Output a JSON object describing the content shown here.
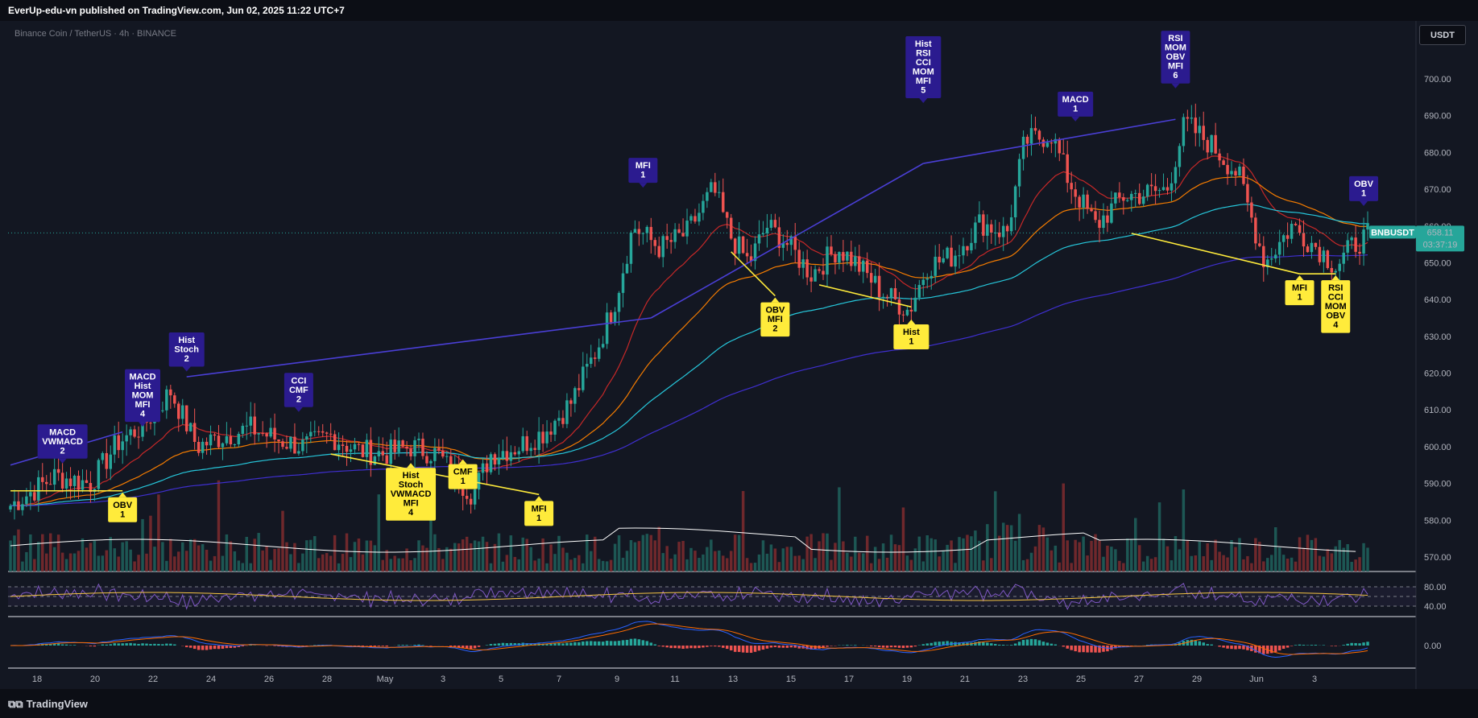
{
  "header": {
    "published": "EverUp-edu-vn published on TradingView.com, Jun 02, 2025 11:22 UTC+7"
  },
  "symbol": {
    "title": "Binance Coin / TetherUS · 4h · BINANCE"
  },
  "currency": "USDT",
  "footer": {
    "brand": "TradingView"
  },
  "colors": {
    "up": "#26a69a",
    "down": "#ef5350",
    "bearish_label": "#2b1b8f",
    "bullish_label": "#ffeb3b",
    "ema_fast": "#c62828",
    "ema_mid": "#f57c00",
    "ema_slow": "#26c6da",
    "ema_long": "#3f2fd0",
    "divergence_bull": "#ffeb3b",
    "divergence_bear": "#4a3fd6"
  },
  "chart_data": {
    "type": "candlestick",
    "timeframe": "4h",
    "ylim": [
      565,
      705
    ],
    "yticks": [
      570,
      580,
      590,
      600,
      610,
      620,
      630,
      640,
      650,
      660,
      670,
      680,
      690,
      700
    ],
    "xticks": [
      "18",
      "20",
      "22",
      "24",
      "26",
      "28",
      "May",
      "3",
      "5",
      "7",
      "9",
      "11",
      "13",
      "15",
      "17",
      "19",
      "21",
      "23",
      "25",
      "27",
      "29",
      "Jun",
      "3"
    ],
    "last_price": {
      "label": "BNBUSDT",
      "value": "658.11",
      "countdown": "03:37:19"
    },
    "price_path": [
      [
        0,
        584
      ],
      [
        10,
        592
      ],
      [
        18,
        590
      ],
      [
        24,
        601
      ],
      [
        30,
        606
      ],
      [
        36,
        615
      ],
      [
        42,
        600
      ],
      [
        48,
        603
      ],
      [
        54,
        605
      ],
      [
        60,
        602
      ],
      [
        66,
        600
      ],
      [
        72,
        603
      ],
      [
        78,
        599
      ],
      [
        84,
        598
      ],
      [
        90,
        600
      ],
      [
        96,
        598
      ],
      [
        100,
        592
      ],
      [
        104,
        587
      ],
      [
        108,
        598
      ],
      [
        114,
        600
      ],
      [
        120,
        604
      ],
      [
        126,
        612
      ],
      [
        132,
        627
      ],
      [
        136,
        640
      ],
      [
        140,
        660
      ],
      [
        146,
        654
      ],
      [
        152,
        658
      ],
      [
        158,
        670
      ],
      [
        162,
        657
      ],
      [
        166,
        650
      ],
      [
        170,
        660
      ],
      [
        174,
        656
      ],
      [
        180,
        647
      ],
      [
        186,
        654
      ],
      [
        190,
        650
      ],
      [
        196,
        642
      ],
      [
        202,
        637
      ],
      [
        206,
        649
      ],
      [
        212,
        652
      ],
      [
        218,
        661
      ],
      [
        224,
        658
      ],
      [
        228,
        683
      ],
      [
        234,
        685
      ],
      [
        238,
        672
      ],
      [
        244,
        660
      ],
      [
        250,
        668
      ],
      [
        256,
        669
      ],
      [
        260,
        670
      ],
      [
        264,
        688
      ],
      [
        270,
        682
      ],
      [
        276,
        674
      ],
      [
        282,
        650
      ],
      [
        288,
        660
      ],
      [
        294,
        654
      ],
      [
        298,
        649
      ],
      [
        302,
        655
      ],
      [
        306,
        658
      ]
    ],
    "rsi_panel": {
      "levels": [
        80,
        40
      ],
      "labels": [
        "80.00",
        "40.00"
      ]
    },
    "macd_panel": {
      "zero_label": "0.00"
    },
    "signals": [
      {
        "type": "bearish",
        "lines": [
          "Hist",
          "RSI",
          "CCI",
          "MOM",
          "MFI",
          "5"
        ],
        "i": 228,
        "price": 693
      },
      {
        "type": "bearish",
        "lines": [
          "RSI",
          "MOM",
          "OBV",
          "MFI",
          "6"
        ],
        "i": 291,
        "price": 697
      },
      {
        "type": "bearish",
        "lines": [
          "MACD",
          "1"
        ],
        "i": 266,
        "price": 688
      },
      {
        "type": "bearish",
        "lines": [
          "OBV",
          "1"
        ],
        "i": 338,
        "price": 665
      },
      {
        "type": "bearish",
        "lines": [
          "MFI",
          "1"
        ],
        "i": 158,
        "price": 670
      },
      {
        "type": "bearish",
        "lines": [
          "Hist",
          "Stoch",
          "2"
        ],
        "i": 44,
        "price": 620
      },
      {
        "type": "bearish",
        "lines": [
          "MACD",
          "Hist",
          "MOM",
          "MFI",
          "4"
        ],
        "i": 33,
        "price": 605
      },
      {
        "type": "bearish",
        "lines": [
          "CCI",
          "CMF",
          "2"
        ],
        "i": 72,
        "price": 609
      },
      {
        "type": "bearish",
        "lines": [
          "MACD",
          "VWMACD",
          "2"
        ],
        "i": 13,
        "price": 595
      },
      {
        "type": "bullish",
        "lines": [
          "OBV",
          "1"
        ],
        "i": 28,
        "price": 588
      },
      {
        "type": "bullish",
        "lines": [
          "Hist",
          "Stoch",
          "VWMACD",
          "MFI",
          "4"
        ],
        "i": 100,
        "price": 596
      },
      {
        "type": "bullish",
        "lines": [
          "CMF",
          "1"
        ],
        "i": 113,
        "price": 597
      },
      {
        "type": "bullish",
        "lines": [
          "MFI",
          "1"
        ],
        "i": 132,
        "price": 587
      },
      {
        "type": "bullish",
        "lines": [
          "OBV",
          "MFI",
          "2"
        ],
        "i": 191,
        "price": 641
      },
      {
        "type": "bullish",
        "lines": [
          "Hist",
          "1"
        ],
        "i": 225,
        "price": 635
      },
      {
        "type": "bullish",
        "lines": [
          "MFI",
          "1"
        ],
        "i": 322,
        "price": 647
      },
      {
        "type": "bullish",
        "lines": [
          "RSI",
          "CCI",
          "MOM",
          "OBV",
          "4"
        ],
        "i": 331,
        "price": 647
      }
    ]
  }
}
